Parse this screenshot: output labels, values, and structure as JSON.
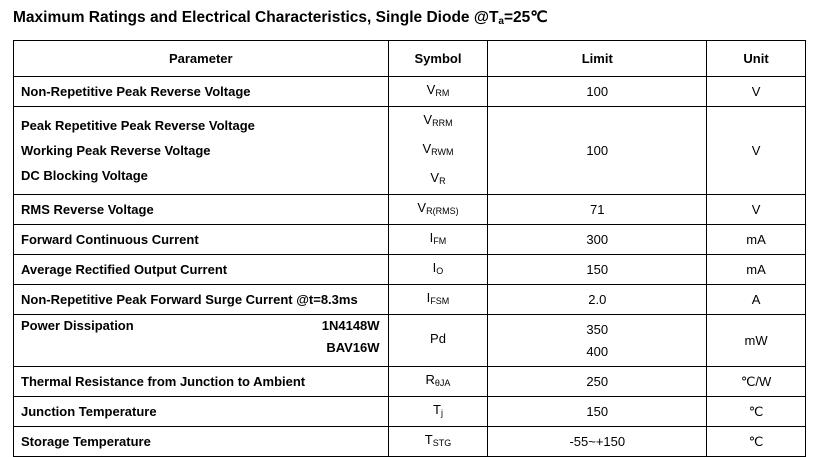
{
  "title": {
    "text": "Maximum Ratings and Electrical Characteristics, Single Diode @T",
    "sub": "a",
    "suffix": "=25℃"
  },
  "headers": [
    "Parameter",
    "Symbol",
    "Limit",
    "Unit"
  ],
  "rows": [
    {
      "params": [
        "Non-Repetitive Peak Reverse Voltage"
      ],
      "symbols": [
        {
          "base": "V",
          "sub": "RM"
        }
      ],
      "limits": [
        "100"
      ],
      "unit": "V"
    },
    {
      "params": [
        "Peak Repetitive Peak Reverse Voltage",
        "Working Peak Reverse Voltage",
        "DC Blocking  Voltage"
      ],
      "symbols": [
        {
          "base": "V",
          "sub": "RRM"
        },
        {
          "base": "V",
          "sub": "RWM"
        },
        {
          "base": "V",
          "sub": "R"
        }
      ],
      "limits": [
        "100"
      ],
      "unit": "V"
    },
    {
      "params": [
        "RMS Reverse Voltage"
      ],
      "symbols": [
        {
          "base": "V",
          "sub": "R(RMS)"
        }
      ],
      "limits": [
        "71"
      ],
      "unit": "V"
    },
    {
      "params": [
        "Forward Continuous Current"
      ],
      "symbols": [
        {
          "base": "I",
          "sub": "FM"
        }
      ],
      "limits": [
        "300"
      ],
      "unit": "mA"
    },
    {
      "params": [
        "Average Rectified Output Current"
      ],
      "symbols": [
        {
          "base": "I",
          "sub": "O"
        }
      ],
      "limits": [
        "150"
      ],
      "unit": "mA"
    },
    {
      "params": [
        "Non-Repetitive Peak Forward Surge Current @t=8.3ms"
      ],
      "symbols": [
        {
          "base": "I",
          "sub": "FSM"
        }
      ],
      "limits": [
        "2.0"
      ],
      "unit": "A"
    },
    {
      "params": [
        "Power Dissipation"
      ],
      "variants": [
        "1N4148W",
        "BAV16W"
      ],
      "symbols": [
        {
          "base": "Pd",
          "sub": ""
        }
      ],
      "limits": [
        "350",
        "400"
      ],
      "unit": "mW"
    },
    {
      "params": [
        "Thermal Resistance from Junction to Ambient"
      ],
      "symbols": [
        {
          "base": "R",
          "sub": "θJA"
        }
      ],
      "limits": [
        "250"
      ],
      "unit": "℃/W"
    },
    {
      "params": [
        "Junction Temperature"
      ],
      "symbols": [
        {
          "base": "T",
          "sub": "j"
        }
      ],
      "limits": [
        "150"
      ],
      "unit": "℃"
    },
    {
      "params": [
        "Storage Temperature"
      ],
      "symbols": [
        {
          "base": "T",
          "sub": "STG"
        }
      ],
      "limits": [
        "-55~+150"
      ],
      "unit": "℃"
    }
  ]
}
